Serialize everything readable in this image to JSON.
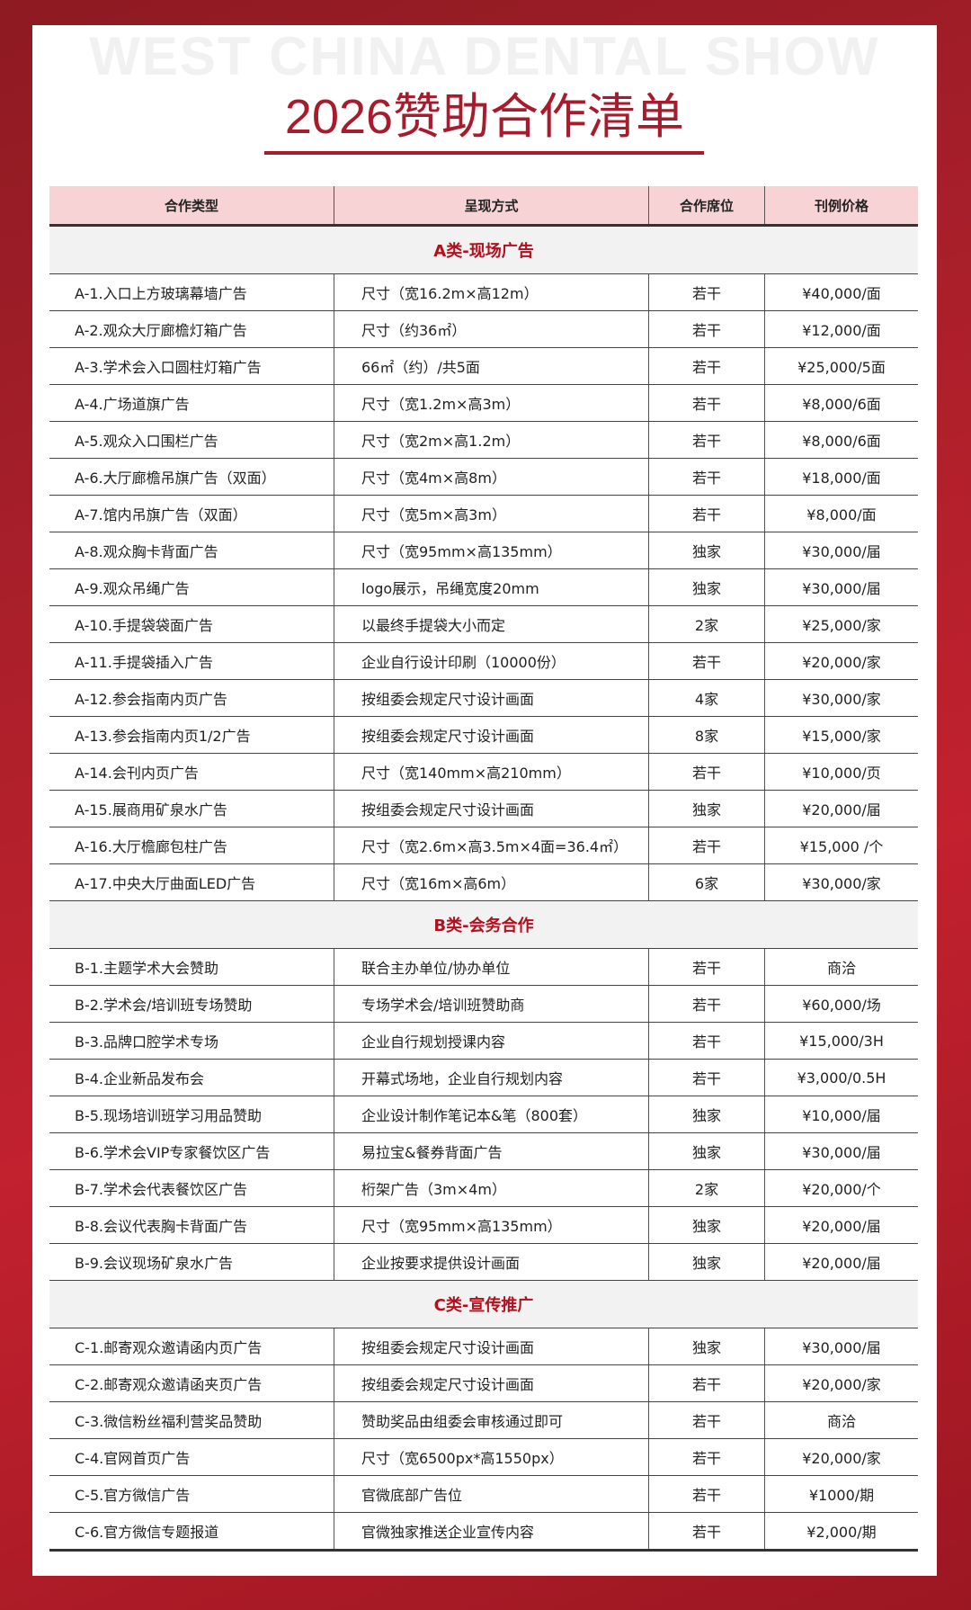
{
  "watermark": "WEST CHINA DENTAL SHOW",
  "title": "2026赞助合作清单",
  "headers": [
    "合作类型",
    "呈现方式",
    "合作席位",
    "刊例价格"
  ],
  "sections": [
    {
      "name": "A类-现场广告",
      "rows": [
        [
          "A-1.入口上方玻璃幕墙广告",
          "尺寸（宽16.2m×高12m）",
          "若干",
          "¥40,000/面"
        ],
        [
          "A-2.观众大厅廊檐灯箱广告",
          "尺寸（约36㎡）",
          "若干",
          "¥12,000/面"
        ],
        [
          "A-3.学术会入口圆柱灯箱广告",
          "66㎡（约）/共5面",
          "若干",
          "¥25,000/5面"
        ],
        [
          "A-4.广场道旗广告",
          "尺寸（宽1.2m×高3m）",
          "若干",
          "¥8,000/6面"
        ],
        [
          "A-5.观众入口围栏广告",
          "尺寸（宽2m×高1.2m）",
          "若干",
          "¥8,000/6面"
        ],
        [
          "A-6.大厅廊檐吊旗广告（双面）",
          "尺寸（宽4m×高8m）",
          "若干",
          "¥18,000/面"
        ],
        [
          "A-7.馆内吊旗广告（双面）",
          "尺寸（宽5m×高3m）",
          "若干",
          "¥8,000/面"
        ],
        [
          "A-8.观众胸卡背面广告",
          "尺寸（宽95mm×高135mm）",
          "独家",
          "¥30,000/届"
        ],
        [
          "A-9.观众吊绳广告",
          "logo展示，吊绳宽度20mm",
          "独家",
          "¥30,000/届"
        ],
        [
          "A-10.手提袋袋面广告",
          "以最终手提袋大小而定",
          "2家",
          "¥25,000/家"
        ],
        [
          "A-11.手提袋插入广告",
          "企业自行设计印刷（10000份）",
          "若干",
          "¥20,000/家"
        ],
        [
          "A-12.参会指南内页广告",
          "按组委会规定尺寸设计画面",
          "4家",
          "¥30,000/家"
        ],
        [
          "A-13.参会指南内页1/2广告",
          "按组委会规定尺寸设计画面",
          "8家",
          "¥15,000/家"
        ],
        [
          "A-14.会刊内页广告",
          "尺寸（宽140mm×高210mm）",
          "若干",
          "¥10,000/页"
        ],
        [
          "A-15.展商用矿泉水广告",
          "按组委会规定尺寸设计画面",
          "独家",
          "¥20,000/届"
        ],
        [
          "A-16.大厅檐廊包柱广告",
          "尺寸（宽2.6m×高3.5m×4面=36.4㎡）",
          "若干",
          "¥15,000 /个"
        ],
        [
          "A-17.中央大厅曲面LED广告",
          "尺寸（宽16m×高6m）",
          "6家",
          "¥30,000/家"
        ]
      ]
    },
    {
      "name": "B类-会务合作",
      "rows": [
        [
          "B-1.主题学术大会赞助",
          "联合主办单位/协办单位",
          "若干",
          "商洽"
        ],
        [
          "B-2.学术会/培训班专场赞助",
          "专场学术会/培训班赞助商",
          "若干",
          "¥60,000/场"
        ],
        [
          "B-3.品牌口腔学术专场",
          "企业自行规划授课内容",
          "若干",
          "¥15,000/3H"
        ],
        [
          "B-4.企业新品发布会",
          "开幕式场地，企业自行规划内容",
          "若干",
          "¥3,000/0.5H"
        ],
        [
          "B-5.现场培训班学习用品赞助",
          "企业设计制作笔记本&笔（800套）",
          "独家",
          "¥10,000/届"
        ],
        [
          "B-6.学术会VIP专家餐饮区广告",
          "易拉宝&餐券背面广告",
          "独家",
          "¥30,000/届"
        ],
        [
          "B-7.学术会代表餐饮区广告",
          "桁架广告（3m×4m）",
          "2家",
          "¥20,000/个"
        ],
        [
          "B-8.会议代表胸卡背面广告",
          "尺寸（宽95mm×高135mm）",
          "独家",
          "¥20,000/届"
        ],
        [
          "B-9.会议现场矿泉水广告",
          "企业按要求提供设计画面",
          "独家",
          "¥20,000/届"
        ]
      ]
    },
    {
      "name": "C类-宣传推广",
      "rows": [
        [
          "C-1.邮寄观众邀请函内页广告",
          "按组委会规定尺寸设计画面",
          "独家",
          "¥30,000/届"
        ],
        [
          "C-2.邮寄观众邀请函夹页广告",
          "按组委会规定尺寸设计画面",
          "若干",
          "¥20,000/家"
        ],
        [
          "C-3.微信粉丝福利营奖品赞助",
          "赞助奖品由组委会审核通过即可",
          "若干",
          "商洽"
        ],
        [
          "C-4.官网首页广告",
          "尺寸（宽6500px*高1550px）",
          "若干",
          "¥20,000/家"
        ],
        [
          "C-5.官方微信广告",
          "官微底部广告位",
          "若干",
          "¥1000/期"
        ],
        [
          "C-6.官方微信专题报道",
          "官微独家推送企业宣传内容",
          "若干",
          "¥2,000/期"
        ]
      ]
    }
  ]
}
